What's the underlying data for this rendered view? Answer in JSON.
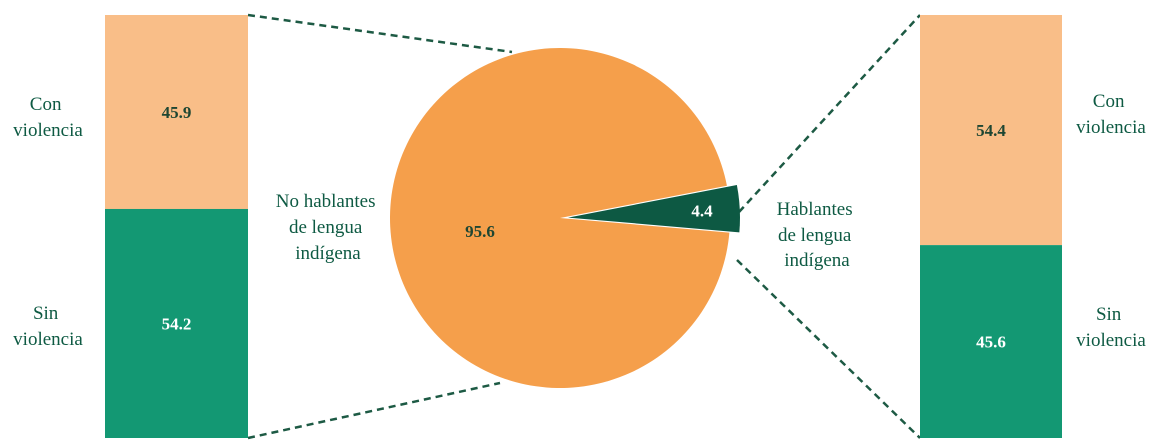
{
  "colors": {
    "orange_light": "#F9BE88",
    "orange_pie": "#F59F4B",
    "green_bar": "#139873",
    "green_dark": "#0D5943",
    "label_green": "#0E5A43",
    "value_dark": "#1E4632",
    "value_light": "#FFFFFF",
    "connector": "#1D5A44"
  },
  "chart_data": [
    {
      "type": "pie",
      "title": "",
      "slices": [
        {
          "label": "No hablantes de lengua indígena",
          "value": 95.6
        },
        {
          "label": "Hablantes de lengua indígena",
          "value": 4.4
        }
      ]
    },
    {
      "type": "bar",
      "stacked": true,
      "group": "No hablantes de lengua indígena",
      "categories": [
        "Con violencia",
        "Sin violencia"
      ],
      "values": [
        45.9,
        54.2
      ]
    },
    {
      "type": "bar",
      "stacked": true,
      "group": "Hablantes de lengua indígena",
      "categories": [
        "Con violencia",
        "Sin violencia"
      ],
      "values": [
        54.4,
        45.6
      ]
    }
  ],
  "labels": {
    "left_bar": {
      "top": [
        "Con",
        "violencia"
      ],
      "bottom": [
        "Sin",
        "violencia"
      ]
    },
    "right_bar": {
      "top": [
        "Con",
        "violencia"
      ],
      "bottom": [
        "Sin",
        "violencia"
      ]
    },
    "pie_big": [
      "No hablantes",
      "de lengua",
      "indígena"
    ],
    "pie_small": [
      "Hablantes",
      "de lengua",
      "indígena"
    ]
  }
}
